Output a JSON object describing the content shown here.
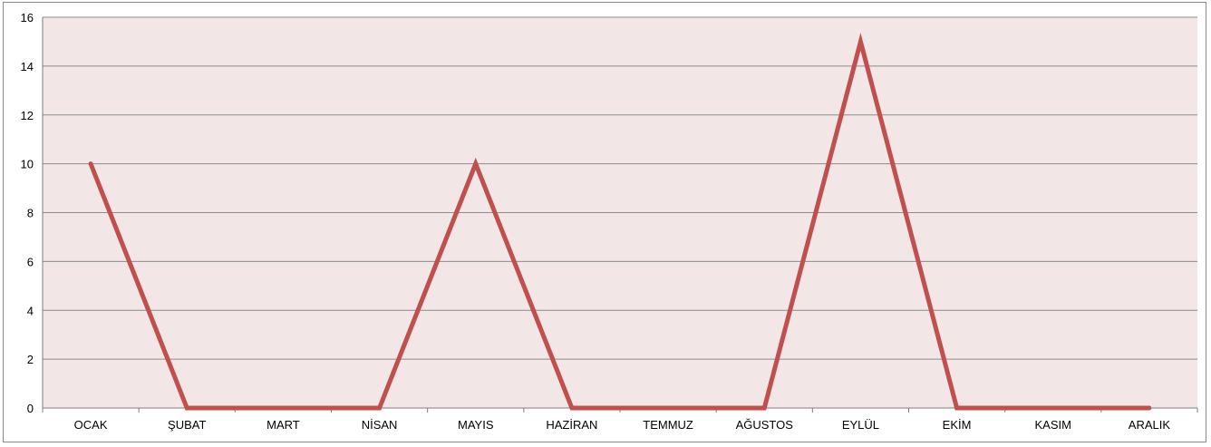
{
  "chart_data": {
    "type": "line",
    "categories": [
      "OCAK",
      "ŞUBAT",
      "MART",
      "NİSAN",
      "MAYIS",
      "HAZİRAN",
      "TEMMUZ",
      "AĞUSTOS",
      "EYLÜL",
      "EKİM",
      "KASIM",
      "ARALIK"
    ],
    "series": [
      {
        "values": [
          10,
          0,
          0,
          0,
          10,
          0,
          0,
          0,
          15,
          0,
          0,
          0
        ]
      }
    ],
    "ylim": [
      0,
      16
    ],
    "yticks": [
      0,
      2,
      4,
      6,
      8,
      10,
      12,
      14,
      16
    ],
    "grid": true,
    "legend": "none",
    "colors": {
      "plot_background": "#f2e6e6",
      "line": "#c0504d",
      "gridline": "#8c8c8c",
      "axis": "#7f7f7f"
    }
  }
}
